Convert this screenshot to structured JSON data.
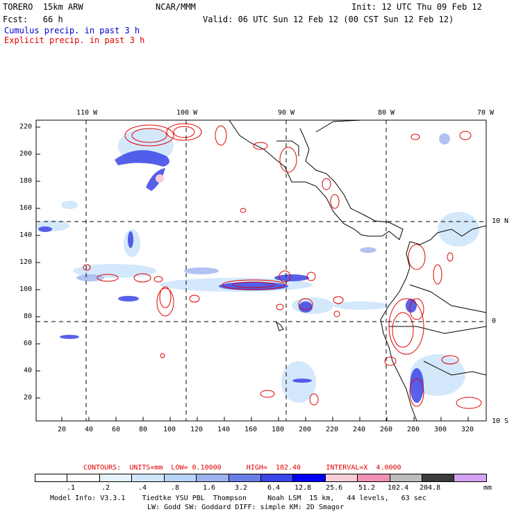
{
  "header": {
    "model": "TORERO  15km ARW",
    "center": "NCAR/MMM",
    "init": "Init: 12 UTC Thu 09 Feb 12",
    "fcst": "Fcst:   66 h",
    "valid": "Valid: 06 UTC Sun 12 Feb 12 (00 CST Sun 12 Feb 12)",
    "cumulus": "Cumulus precip. in past 3 h",
    "explicit": "Explicit precip. in past 3 h"
  },
  "map": {
    "top_ticks": [
      "110 W",
      "100 W",
      "90 W",
      "80 W",
      "70 W"
    ],
    "right_ticks": [
      "10 N",
      "0",
      "10 S"
    ],
    "left_ticks": [
      "220",
      "200",
      "180",
      "160",
      "140",
      "120",
      "100",
      "80",
      "60",
      "40",
      "20"
    ],
    "bottom_ticks": [
      "20",
      "40",
      "60",
      "80",
      "100",
      "120",
      "140",
      "160",
      "180",
      "200",
      "220",
      "240",
      "260",
      "280",
      "300",
      "320"
    ]
  },
  "contours_info": {
    "label": "CONTOURS:  UNITS=mm  LOW= 0.10000      HIGH=  102.40      INTERVAL=X  4.0000"
  },
  "legend": {
    "levels": [
      ".1",
      ".2",
      ".4",
      ".8",
      "1.6",
      "3.2",
      "6.4",
      "12.8",
      "25.6",
      "51.2",
      "102.4",
      "204.8"
    ],
    "unit": "mm",
    "colors": [
      "#ffffff",
      "#ffffff",
      "#e6f2fc",
      "#cfe6fb",
      "#b8d4f8",
      "#9db3f0",
      "#6a7ee8",
      "#3b45e6",
      "#0000f5",
      "#f9cdd8",
      "#f28fb6",
      "#bdbdbd",
      "#3c3c3c",
      "#d5a3f3"
    ]
  },
  "model_info": {
    "line1": "Model Info: V3.3.1    Tiedtke YSU PBL  Thompson     Noah LSM  15 km,   44 levels,   63 sec",
    "line2": "LW: Godd SW: Goddard DIFF: simple KM: 2D Smagor"
  }
}
